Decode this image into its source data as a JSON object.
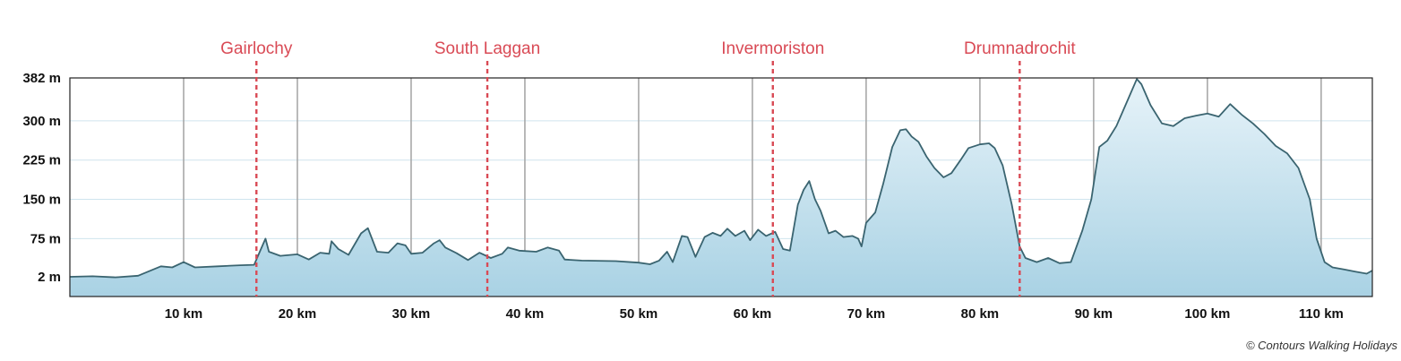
{
  "chart_data": {
    "type": "area",
    "title": "",
    "xlabel": "",
    "ylabel": "",
    "x_unit": "km",
    "y_unit": "m",
    "xlim": [
      0,
      114.5
    ],
    "y_ticks": [
      {
        "value": 2,
        "label": "2 m"
      },
      {
        "value": 75,
        "label": "75 m"
      },
      {
        "value": 150,
        "label": "150 m"
      },
      {
        "value": 225,
        "label": "225 m"
      },
      {
        "value": 300,
        "label": "300 m"
      },
      {
        "value": 382,
        "label": "382 m"
      }
    ],
    "x_ticks": [
      {
        "value": 10,
        "label": "10 km"
      },
      {
        "value": 20,
        "label": "20 km"
      },
      {
        "value": 30,
        "label": "30 km"
      },
      {
        "value": 40,
        "label": "40 km"
      },
      {
        "value": 50,
        "label": "50 km"
      },
      {
        "value": 60,
        "label": "60 km"
      },
      {
        "value": 70,
        "label": "70 km"
      },
      {
        "value": 80,
        "label": "80 km"
      },
      {
        "value": 90,
        "label": "90 km"
      },
      {
        "value": 100,
        "label": "100 km"
      },
      {
        "value": 110,
        "label": "110 km"
      }
    ],
    "markers": [
      {
        "label": "Gairlochy",
        "x": 16.4
      },
      {
        "label": "South Laggan",
        "x": 36.7
      },
      {
        "label": "Invermoriston",
        "x": 61.8
      },
      {
        "label": "Drumnadrochit",
        "x": 83.5
      }
    ],
    "grid": true,
    "colors": {
      "line": "#3a6470",
      "fill_top": "#e7f3f9",
      "fill_bottom": "#a9d2e4",
      "marker": "#d94a55",
      "vgrid": "#a8a8a8",
      "hgrid": "#cfe4ee",
      "frame": "#222222"
    },
    "series": [
      {
        "points": [
          [
            0,
            2
          ],
          [
            2,
            3
          ],
          [
            4,
            1
          ],
          [
            6,
            4
          ],
          [
            8,
            22
          ],
          [
            9,
            20
          ],
          [
            10,
            30
          ],
          [
            11,
            20
          ],
          [
            13,
            22
          ],
          [
            15,
            24
          ],
          [
            16.2,
            25
          ],
          [
            16.8,
            55
          ],
          [
            17.2,
            75
          ],
          [
            17.5,
            50
          ],
          [
            18.5,
            42
          ],
          [
            20,
            45
          ],
          [
            21,
            35
          ],
          [
            22,
            48
          ],
          [
            22.8,
            46
          ],
          [
            23,
            70
          ],
          [
            23.6,
            55
          ],
          [
            24.5,
            44
          ],
          [
            25.6,
            85
          ],
          [
            26.2,
            95
          ],
          [
            27,
            50
          ],
          [
            28,
            48
          ],
          [
            28.8,
            66
          ],
          [
            29.5,
            62
          ],
          [
            30,
            46
          ],
          [
            31,
            48
          ],
          [
            32,
            66
          ],
          [
            32.5,
            72
          ],
          [
            33,
            58
          ],
          [
            34,
            47
          ],
          [
            35,
            34
          ],
          [
            36,
            48
          ],
          [
            37,
            38
          ],
          [
            38,
            46
          ],
          [
            38.5,
            58
          ],
          [
            39.5,
            52
          ],
          [
            41,
            50
          ],
          [
            42,
            58
          ],
          [
            43,
            52
          ],
          [
            43.5,
            35
          ],
          [
            45,
            33
          ],
          [
            48,
            32
          ],
          [
            50,
            29
          ],
          [
            51,
            26
          ],
          [
            51.8,
            33
          ],
          [
            52.5,
            50
          ],
          [
            53,
            30
          ],
          [
            53.8,
            80
          ],
          [
            54.3,
            78
          ],
          [
            55,
            40
          ],
          [
            55.8,
            78
          ],
          [
            56.5,
            86
          ],
          [
            57.2,
            80
          ],
          [
            57.8,
            94
          ],
          [
            58.5,
            80
          ],
          [
            59.3,
            90
          ],
          [
            59.8,
            72
          ],
          [
            60.5,
            92
          ],
          [
            61.2,
            80
          ],
          [
            62,
            88
          ],
          [
            62.7,
            55
          ],
          [
            63.3,
            52
          ],
          [
            64,
            140
          ],
          [
            64.5,
            168
          ],
          [
            65,
            185
          ],
          [
            65.5,
            150
          ],
          [
            66,
            128
          ],
          [
            66.7,
            85
          ],
          [
            67.3,
            90
          ],
          [
            68,
            78
          ],
          [
            68.8,
            80
          ],
          [
            69.3,
            75
          ],
          [
            69.6,
            60
          ],
          [
            70,
            105
          ],
          [
            70.8,
            125
          ],
          [
            71.5,
            180
          ],
          [
            72.3,
            250
          ],
          [
            73,
            282
          ],
          [
            73.5,
            284
          ],
          [
            74,
            270
          ],
          [
            74.6,
            260
          ],
          [
            75.3,
            232
          ],
          [
            76,
            210
          ],
          [
            76.8,
            192
          ],
          [
            77.5,
            200
          ],
          [
            78.3,
            225
          ],
          [
            79,
            248
          ],
          [
            80,
            255
          ],
          [
            80.8,
            257
          ],
          [
            81.3,
            248
          ],
          [
            82,
            215
          ],
          [
            82.8,
            140
          ],
          [
            83.5,
            60
          ],
          [
            84,
            38
          ],
          [
            85,
            30
          ],
          [
            86,
            38
          ],
          [
            87,
            28
          ],
          [
            88,
            30
          ],
          [
            89,
            90
          ],
          [
            89.8,
            150
          ],
          [
            90.5,
            250
          ],
          [
            91.2,
            262
          ],
          [
            92,
            290
          ],
          [
            93,
            340
          ],
          [
            93.8,
            380
          ],
          [
            94.2,
            370
          ],
          [
            95,
            330
          ],
          [
            96,
            295
          ],
          [
            97,
            290
          ],
          [
            98,
            305
          ],
          [
            99,
            310
          ],
          [
            100,
            314
          ],
          [
            101,
            308
          ],
          [
            102,
            332
          ],
          [
            103,
            312
          ],
          [
            104,
            295
          ],
          [
            105,
            275
          ],
          [
            106,
            252
          ],
          [
            107,
            238
          ],
          [
            108,
            210
          ],
          [
            109,
            150
          ],
          [
            109.6,
            75
          ],
          [
            110.3,
            30
          ],
          [
            111,
            20
          ],
          [
            112,
            16
          ],
          [
            113,
            12
          ],
          [
            114,
            8
          ],
          [
            114.5,
            14
          ]
        ]
      }
    ]
  },
  "credit": "© Contours Walking Holidays"
}
